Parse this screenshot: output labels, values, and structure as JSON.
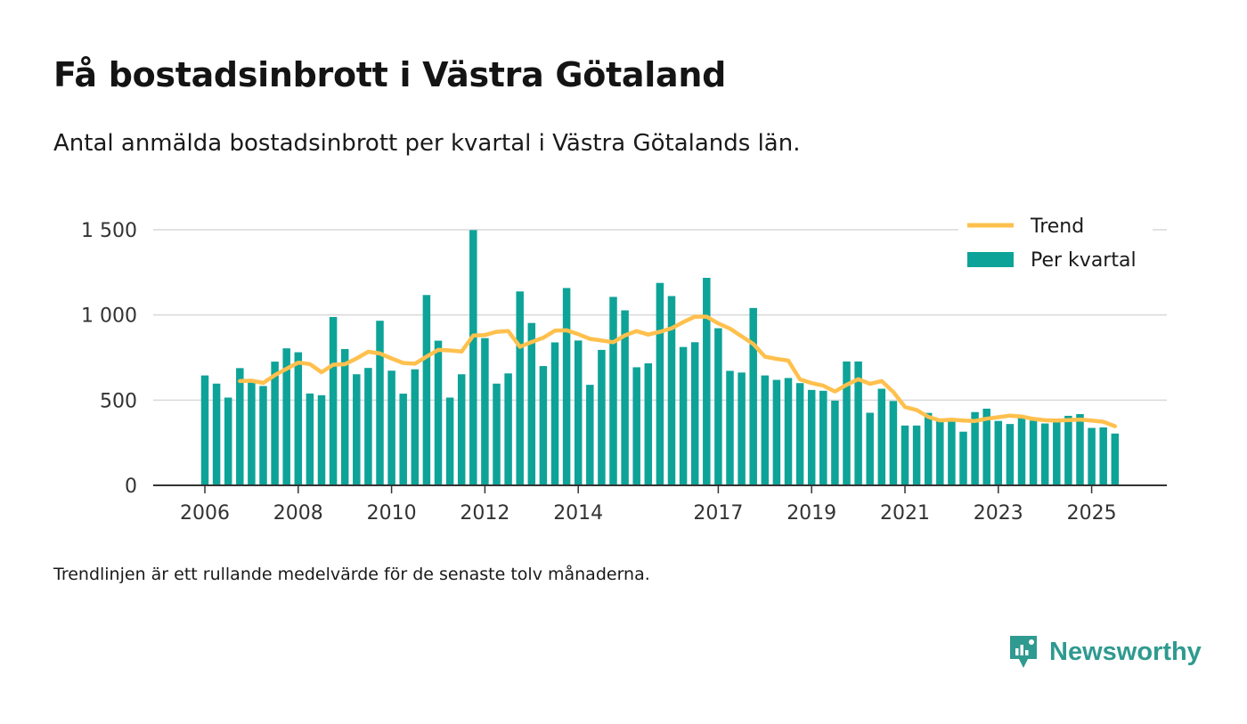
{
  "title": "Få bostadsinbrott i Västra Götaland",
  "subtitle": "Antal anmälda bostadsinbrott per kvartal i Västra Götalands län.",
  "footnote": "Trendlinjen är ett rullande medelvärde för de senaste tolv månaderna.",
  "brand": "Newsworthy",
  "colors": {
    "bar": "#0ea398",
    "trend": "#ffc04d",
    "grid": "#d9d9d9",
    "axis": "#333333",
    "brand": "#2f9a8f"
  },
  "chart_data": {
    "type": "bar",
    "title": "Få bostadsinbrott i Västra Götaland",
    "xlabel": "",
    "ylabel": "",
    "ylim": [
      0,
      1500
    ],
    "yticks": [
      0,
      500,
      1000,
      1500
    ],
    "ytick_labels": [
      "0",
      "500",
      "1 000",
      "1 500"
    ],
    "x_start_year": 2006,
    "quarters_per_year": 4,
    "xtick_labels": [
      {
        "label": "2006",
        "year": 2006
      },
      {
        "label": "2008",
        "year": 2008
      },
      {
        "label": "2010",
        "year": 2010
      },
      {
        "label": "2012",
        "year": 2012
      },
      {
        "label": "2014",
        "year": 2014
      },
      {
        "label": "2017",
        "year": 2017
      },
      {
        "label": "2019",
        "year": 2019
      },
      {
        "label": "2021",
        "year": 2021
      },
      {
        "label": "2023",
        "year": 2023
      },
      {
        "label": "2025",
        "year": 2025
      }
    ],
    "legend": {
      "position": "top-right",
      "trend_label": "Trend",
      "bars_label": "Per kvartal"
    },
    "series": [
      {
        "name": "Per kvartal",
        "type": "bar",
        "values": [
          645,
          597,
          515,
          688,
          620,
          583,
          726,
          804,
          781,
          539,
          529,
          988,
          800,
          652,
          689,
          966,
          673,
          538,
          681,
          1117,
          849,
          515,
          652,
          1498,
          864,
          597,
          657,
          1138,
          953,
          700,
          839,
          1158,
          850,
          590,
          795,
          1106,
          1027,
          693,
          716,
          1188,
          1111,
          812,
          840,
          1218,
          922,
          672,
          662,
          1041,
          645,
          619,
          630,
          600,
          560,
          555,
          497,
          727,
          727,
          426,
          567,
          495,
          351,
          351,
          425,
          389,
          383,
          315,
          430,
          450,
          378,
          360,
          405,
          380,
          363,
          378,
          408,
          418,
          337,
          340,
          304
        ]
      },
      {
        "name": "Trend",
        "type": "line",
        "start_index": 3,
        "values": [
          612,
          614,
          601,
          647,
          684,
          720,
          712,
          664,
          708,
          711,
          745,
          784,
          774,
          745,
          718,
          714,
          756,
          795,
          792,
          785,
          879,
          882,
          901,
          905,
          813,
          841,
          866,
          908,
          910,
          887,
          860,
          850,
          840,
          880,
          905,
          885,
          901,
          922,
          958,
          990,
          990,
          950,
          920,
          875,
          830,
          755,
          742,
          732,
          622,
          600,
          585,
          551,
          590,
          623,
          596,
          612,
          548,
          460,
          442,
          402,
          381,
          385,
          380,
          378,
          391,
          400,
          409,
          404,
          390,
          382,
          380,
          383,
          386,
          380,
          373,
          347
        ]
      }
    ]
  }
}
